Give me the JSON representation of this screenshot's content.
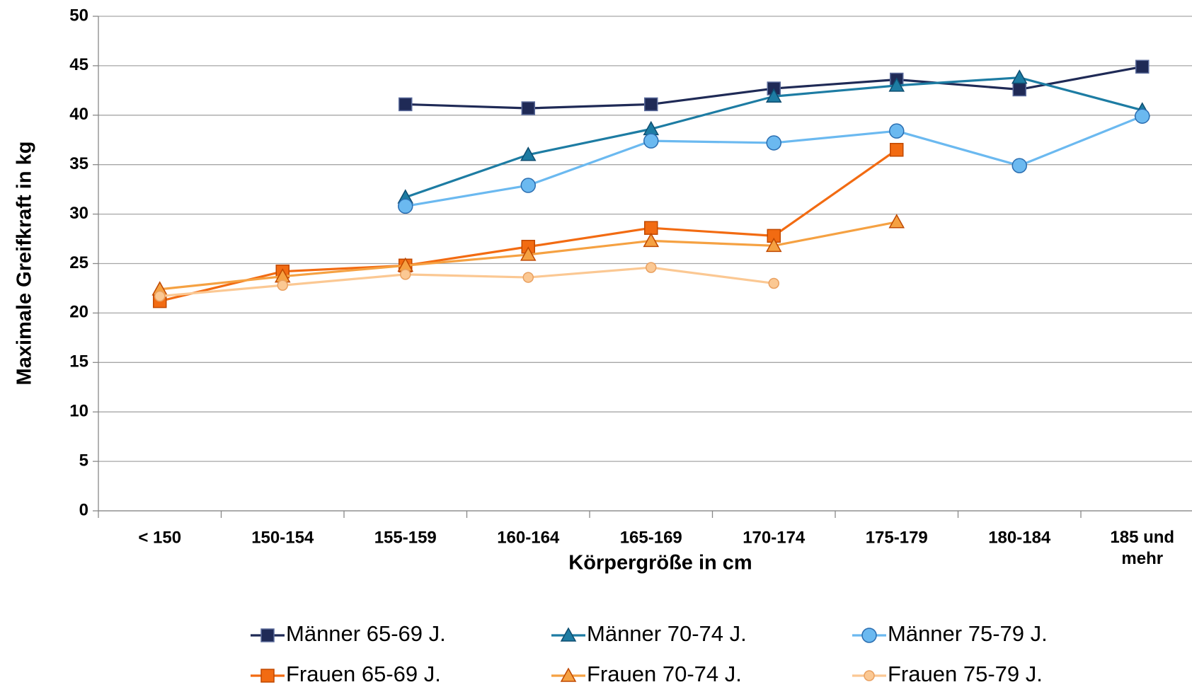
{
  "chart_data": {
    "type": "line",
    "xlabel": "Körpergröße in cm",
    "ylabel": "Maximale Greifkraft in kg",
    "categories": [
      "< 150",
      "150-154",
      "155-159",
      "160-164",
      "165-169",
      "170-174",
      "175-179",
      "180-184",
      "185 und mehr"
    ],
    "series": [
      {
        "name": "Männer 65-69 J.",
        "color": "#1f2a56",
        "marker": "square",
        "values": [
          null,
          null,
          41.1,
          40.7,
          41.1,
          42.7,
          43.6,
          42.6,
          44.9
        ]
      },
      {
        "name": "Männer 70-74 J.",
        "color": "#1d7ca3",
        "marker": "triangle",
        "values": [
          null,
          null,
          31.7,
          36.0,
          38.6,
          41.9,
          43.0,
          43.8,
          40.5
        ]
      },
      {
        "name": "Männer 75-79 J.",
        "color": "#6bb9f0",
        "marker": "circle",
        "values": [
          null,
          null,
          30.8,
          32.9,
          37.4,
          37.2,
          38.4,
          34.9,
          39.9
        ]
      },
      {
        "name": "Frauen 65-69 J.",
        "color": "#f26b12",
        "marker": "square",
        "values": [
          21.2,
          24.2,
          24.8,
          26.7,
          28.6,
          27.8,
          36.5,
          null,
          null
        ]
      },
      {
        "name": "Frauen 70-74 J.",
        "color": "#f5a142",
        "marker": "triangle",
        "values": [
          22.4,
          23.7,
          24.8,
          25.9,
          27.3,
          26.8,
          29.2,
          null,
          null
        ]
      },
      {
        "name": "Frauen 75-79 J.",
        "color": "#fbc893",
        "marker": "small-circle",
        "values": [
          21.7,
          22.8,
          23.9,
          23.6,
          24.6,
          23.0,
          null,
          null,
          null
        ]
      }
    ],
    "ylim": [
      0,
      50
    ],
    "yticks": [
      0,
      5,
      10,
      15,
      20,
      25,
      30,
      35,
      40,
      45,
      50
    ],
    "grid": true
  }
}
